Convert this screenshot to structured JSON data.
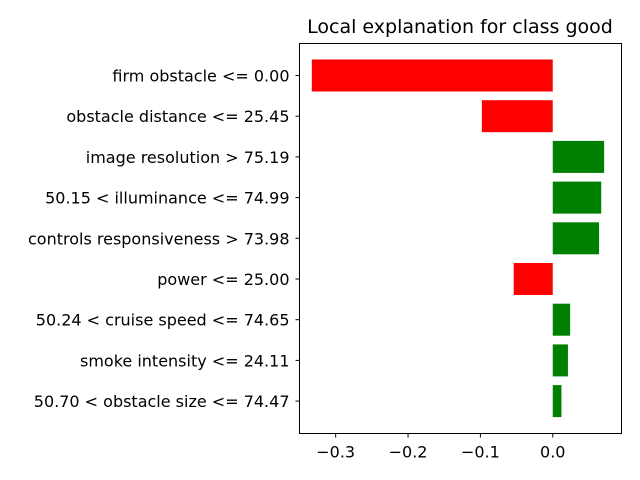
{
  "chart_data": {
    "type": "bar",
    "orientation": "horizontal",
    "title": "Local explanation for class good",
    "xlabel": "",
    "ylabel": "",
    "xlim": [
      -0.35,
      0.095
    ],
    "xticks": [
      -0.3,
      -0.2,
      -0.1,
      0.0
    ],
    "xtick_labels": [
      "−0.3",
      "−0.2",
      "−0.1",
      "0.0"
    ],
    "grid": false,
    "colors": {
      "positive": "#008000",
      "negative": "#ff0000"
    },
    "categories": [
      "firm obstacle <= 0.00",
      "obstacle distance <= 25.45",
      "image resolution > 75.19",
      "50.15 < illuminance <= 74.99",
      "controls responsiveness > 73.98",
      "power <= 25.00",
      "50.24 < cruise speed <= 74.65",
      "smoke intensity <= 24.11",
      "50.70 < obstacle size <= 74.47"
    ],
    "values": [
      -0.333,
      -0.098,
      0.071,
      0.067,
      0.064,
      -0.054,
      0.024,
      0.021,
      0.012
    ]
  }
}
